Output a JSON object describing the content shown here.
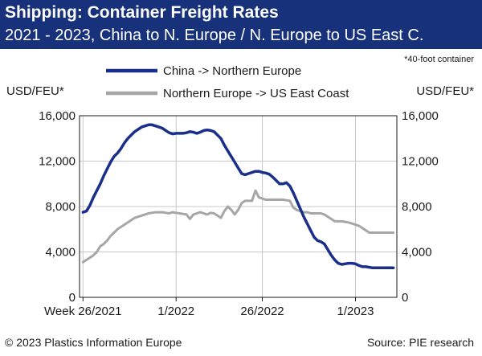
{
  "header": {
    "title": "Shipping: Container Freight Rates",
    "subtitle": "2021 - 2023, China to N. Europe / N. Europe to US East C."
  },
  "footer": {
    "copyright": "© 2023 Plastics Information Europe",
    "source": "Source: PIE research"
  },
  "colors": {
    "header_bg": "#17317a",
    "series_china": "#1a2f8a",
    "series_europe": "#a6a6a6"
  },
  "chart_data": {
    "type": "line",
    "note": "*40-foot container",
    "ylabel_left": "USD/FEU*",
    "ylabel_right": "USD/FEU*",
    "ylim": [
      0,
      16000
    ],
    "yticks": [
      0,
      4000,
      8000,
      12000,
      16000
    ],
    "ytick_labels": [
      "0",
      "4,000",
      "8,000",
      "12,000",
      "16,000"
    ],
    "xticks": [
      {
        "label": "Week 26/2021",
        "week": 0
      },
      {
        "label": "1/2022",
        "week": 27
      },
      {
        "label": "26/2022",
        "week": 52
      },
      {
        "label": "1/2023",
        "week": 79
      }
    ],
    "x_unit": "weeks from week 26/2021",
    "xlim": [
      -1,
      91
    ],
    "grid": true,
    "legend_position": "top",
    "series": [
      {
        "name": "China -> Northern Europe",
        "color": "#1a2f8a",
        "x": [
          0,
          1,
          2,
          3,
          4,
          5,
          6,
          7,
          8,
          9,
          10,
          11,
          12,
          13,
          14,
          15,
          16,
          17,
          18,
          19,
          20,
          21,
          22,
          23,
          24,
          25,
          26,
          27,
          28,
          29,
          30,
          31,
          32,
          33,
          34,
          35,
          36,
          37,
          38,
          39,
          40,
          41,
          42,
          43,
          44,
          45,
          46,
          47,
          48,
          49,
          50,
          51,
          52,
          53,
          54,
          55,
          56,
          57,
          58,
          59,
          60,
          61,
          62,
          63,
          64,
          65,
          66,
          67,
          68,
          69,
          70,
          71,
          72,
          73,
          74,
          75,
          76,
          77,
          78,
          79,
          80,
          81,
          82,
          83,
          84,
          85,
          86,
          87,
          88,
          89,
          90
        ],
        "values": [
          7500,
          7600,
          8100,
          8800,
          9400,
          10000,
          10700,
          11300,
          11900,
          12400,
          12700,
          13100,
          13600,
          14000,
          14300,
          14600,
          14800,
          15000,
          15100,
          15200,
          15200,
          15100,
          15000,
          14900,
          14700,
          14500,
          14400,
          14450,
          14450,
          14450,
          14500,
          14600,
          14550,
          14450,
          14550,
          14700,
          14750,
          14700,
          14600,
          14300,
          14000,
          13400,
          12900,
          12400,
          11900,
          11400,
          10900,
          10800,
          10900,
          11000,
          11100,
          11100,
          11000,
          10950,
          10850,
          10600,
          10300,
          10000,
          10000,
          10100,
          9800,
          9200,
          8500,
          7800,
          7100,
          6500,
          5900,
          5300,
          5000,
          4900,
          4700,
          4200,
          3700,
          3300,
          3000,
          2900,
          2950,
          3000,
          3000,
          2950,
          2800,
          2700,
          2700,
          2650,
          2600,
          2600,
          2600,
          2600,
          2600,
          2600,
          2600
        ]
      },
      {
        "name": "Northern Europe -> US East Coast",
        "color": "#a6a6a6",
        "x": [
          0,
          1,
          2,
          3,
          4,
          5,
          6,
          7,
          8,
          9,
          10,
          11,
          12,
          13,
          14,
          15,
          16,
          17,
          18,
          19,
          20,
          21,
          22,
          23,
          24,
          25,
          26,
          27,
          28,
          29,
          30,
          31,
          32,
          33,
          34,
          35,
          36,
          37,
          38,
          39,
          40,
          41,
          42,
          43,
          44,
          45,
          46,
          47,
          48,
          49,
          50,
          51,
          52,
          53,
          54,
          55,
          56,
          57,
          58,
          59,
          60,
          61,
          62,
          63,
          64,
          65,
          66,
          67,
          68,
          69,
          70,
          71,
          72,
          73,
          74,
          75,
          76,
          77,
          78,
          79,
          80,
          81,
          82,
          83,
          84,
          85,
          86,
          87,
          88,
          89,
          90
        ],
        "values": [
          3100,
          3300,
          3500,
          3700,
          4000,
          4500,
          4700,
          5000,
          5400,
          5700,
          6000,
          6200,
          6400,
          6600,
          6800,
          7000,
          7100,
          7200,
          7300,
          7400,
          7450,
          7500,
          7500,
          7500,
          7450,
          7400,
          7500,
          7450,
          7400,
          7350,
          7300,
          6900,
          7300,
          7400,
          7500,
          7400,
          7300,
          7450,
          7400,
          7200,
          7000,
          7600,
          8000,
          7700,
          7300,
          7700,
          8300,
          8500,
          8500,
          8500,
          9400,
          8800,
          8700,
          8600,
          8600,
          8600,
          8600,
          8600,
          8600,
          8550,
          8500,
          7900,
          7700,
          7600,
          7500,
          7500,
          7400,
          7400,
          7400,
          7400,
          7300,
          7100,
          6900,
          6700,
          6700,
          6700,
          6650,
          6600,
          6500,
          6400,
          6300,
          6100,
          5900,
          5700,
          5700,
          5700,
          5700,
          5700,
          5700,
          5700,
          5700
        ]
      }
    ]
  }
}
